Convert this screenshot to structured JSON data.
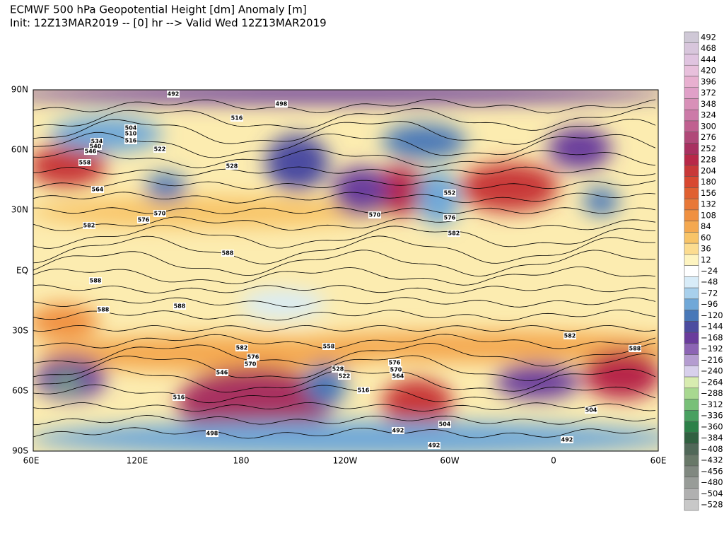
{
  "header": {
    "title": "ECMWF 500 hPa Geopotential Height [dm] Anomaly [m]",
    "subtitle": "Init: 12Z13MAR2019 -- [0] hr --> Valid Wed 12Z13MAR2019"
  },
  "map": {
    "lat_labels": [
      "90N",
      "60N",
      "30N",
      "EQ",
      "30S",
      "60S",
      "90S"
    ],
    "lon_labels": [
      "60E",
      "120E",
      "180",
      "120W",
      "60W",
      "0",
      "60E"
    ],
    "contour_labels": [
      "492",
      "498",
      "516",
      "504",
      "510",
      "516",
      "522",
      "528",
      "534",
      "540",
      "546",
      "558",
      "564",
      "570",
      "576",
      "582",
      "588",
      "588",
      "588",
      "588",
      "552",
      "570",
      "576",
      "582",
      "498",
      "492",
      "492",
      "504",
      "516",
      "546",
      "582",
      "576",
      "570",
      "558",
      "528",
      "522",
      "516",
      "576",
      "570",
      "564",
      "588",
      "582",
      "504",
      "492"
    ]
  },
  "colorbar": {
    "labels": [
      "492",
      "468",
      "444",
      "420",
      "396",
      "372",
      "348",
      "324",
      "300",
      "276",
      "252",
      "228",
      "204",
      "180",
      "156",
      "132",
      "108",
      "84",
      "60",
      "36",
      "12",
      "−24",
      "−48",
      "−72",
      "−96",
      "−120",
      "−144",
      "−168",
      "−192",
      "−216",
      "−240",
      "−264",
      "−288",
      "−312",
      "−336",
      "−360",
      "−384",
      "−408",
      "−432",
      "−456",
      "−480",
      "−504",
      "−528"
    ],
    "colors": [
      "#cfc8d6",
      "#d8c6dc",
      "#e0c4e0",
      "#e8c0dc",
      "#e8b0d0",
      "#e0a0c8",
      "#d890b8",
      "#cc7aa8",
      "#c06090",
      "#b04878",
      "#a83060",
      "#b82848",
      "#c83838",
      "#d84830",
      "#e06030",
      "#e87838",
      "#f09040",
      "#f4a850",
      "#f8c468",
      "#fcdc90",
      "#fef4c0",
      "#ffffff",
      "#d8ecf8",
      "#a8d0ec",
      "#70a8d8",
      "#4878b8",
      "#4c4ca0",
      "#6a3c9c",
      "#8c64b4",
      "#b49cd0",
      "#d8d0ec",
      "#d8ecb0",
      "#a8d890",
      "#78c078",
      "#48a060",
      "#2c8048",
      "#306040",
      "#506858",
      "#687868",
      "#808880",
      "#989c98",
      "#b0b0b0",
      "#c8c8c8"
    ]
  }
}
